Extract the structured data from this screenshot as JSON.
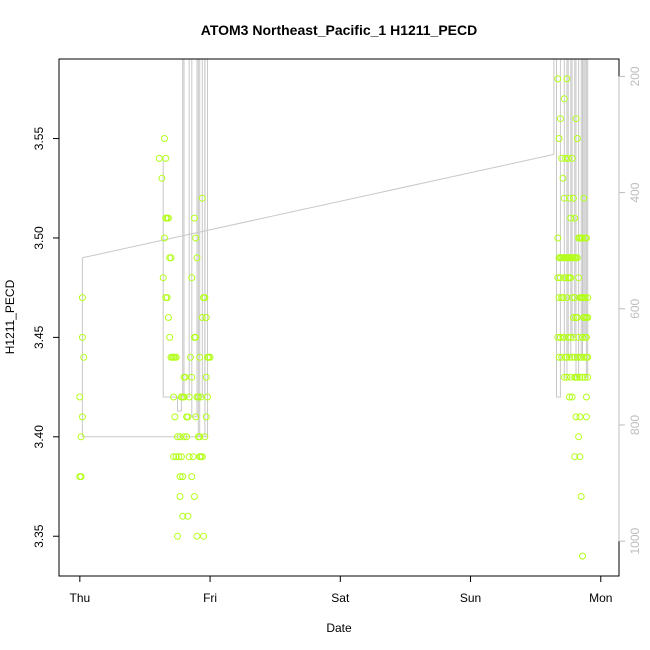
{
  "chart_data": {
    "type": "scatter",
    "title": "ATOM3 Northeast_Pacific_1 H1211_PECD",
    "xlabel": "Date",
    "ylabel": "H1211_PECD",
    "x_ticks": [
      {
        "label": "Thu",
        "value": 0
      },
      {
        "label": "Fri",
        "value": 1
      },
      {
        "label": "Sat",
        "value": 2
      },
      {
        "label": "Sun",
        "value": 3
      },
      {
        "label": "Mon",
        "value": 4
      }
    ],
    "xlim": [
      -0.16,
      4.14
    ],
    "ylim": [
      3.33,
      3.59
    ],
    "y_ticks": [
      3.35,
      3.4,
      3.45,
      3.5,
      3.55
    ],
    "y2_ticks": [
      200,
      400,
      600,
      800,
      1000
    ],
    "y2lim": [
      1060,
      170
    ],
    "point_color": "#b3ff1a",
    "line_color": "#c8c8c8",
    "series": [
      {
        "points": [
          [
            0.0,
            3.38
          ],
          [
            0.01,
            3.38
          ],
          [
            0.0,
            3.42
          ],
          [
            0.01,
            3.4
          ],
          [
            0.02,
            3.41
          ],
          [
            0.02,
            3.45
          ],
          [
            0.02,
            3.47
          ],
          [
            0.03,
            3.44
          ],
          [
            0.61,
            3.54
          ],
          [
            0.63,
            3.53
          ],
          [
            0.64,
            3.48
          ],
          [
            0.65,
            3.55
          ],
          [
            0.66,
            3.54
          ],
          [
            0.65,
            3.5
          ],
          [
            0.66,
            3.51
          ],
          [
            0.67,
            3.51
          ],
          [
            0.68,
            3.51
          ],
          [
            0.69,
            3.49
          ],
          [
            0.7,
            3.49
          ],
          [
            0.66,
            3.47
          ],
          [
            0.67,
            3.47
          ],
          [
            0.68,
            3.46
          ],
          [
            0.69,
            3.45
          ],
          [
            0.7,
            3.44
          ],
          [
            0.71,
            3.44
          ],
          [
            0.72,
            3.44
          ],
          [
            0.73,
            3.44
          ],
          [
            0.74,
            3.44
          ],
          [
            0.72,
            3.42
          ],
          [
            0.73,
            3.41
          ],
          [
            0.72,
            3.39
          ],
          [
            0.74,
            3.39
          ],
          [
            0.76,
            3.39
          ],
          [
            0.75,
            3.4
          ],
          [
            0.77,
            3.4
          ],
          [
            0.78,
            3.42
          ],
          [
            0.79,
            3.42
          ],
          [
            0.8,
            3.43
          ],
          [
            0.81,
            3.43
          ],
          [
            0.8,
            3.4
          ],
          [
            0.82,
            3.4
          ],
          [
            0.78,
            3.39
          ],
          [
            0.77,
            3.38
          ],
          [
            0.79,
            3.38
          ],
          [
            0.77,
            3.37
          ],
          [
            0.79,
            3.36
          ],
          [
            0.75,
            3.35
          ],
          [
            0.83,
            3.36
          ],
          [
            0.8,
            3.42
          ],
          [
            0.82,
            3.41
          ],
          [
            0.83,
            3.41
          ],
          [
            0.84,
            3.42
          ],
          [
            0.85,
            3.44
          ],
          [
            0.86,
            3.43
          ],
          [
            0.86,
            3.48
          ],
          [
            0.88,
            3.51
          ],
          [
            0.89,
            3.5
          ],
          [
            0.9,
            3.49
          ],
          [
            0.88,
            3.45
          ],
          [
            0.89,
            3.45
          ],
          [
            0.9,
            3.42
          ],
          [
            0.91,
            3.42
          ],
          [
            0.92,
            3.44
          ],
          [
            0.93,
            3.42
          ],
          [
            0.94,
            3.46
          ],
          [
            0.95,
            3.47
          ],
          [
            0.96,
            3.47
          ],
          [
            0.94,
            3.52
          ],
          [
            0.97,
            3.46
          ],
          [
            0.98,
            3.44
          ],
          [
            0.99,
            3.44
          ],
          [
            1.0,
            3.44
          ],
          [
            0.97,
            3.43
          ],
          [
            0.98,
            3.42
          ],
          [
            0.97,
            3.41
          ],
          [
            0.96,
            3.4
          ],
          [
            0.92,
            3.39
          ],
          [
            0.93,
            3.39
          ],
          [
            0.94,
            3.39
          ],
          [
            0.91,
            3.4
          ],
          [
            0.9,
            3.35
          ],
          [
            0.92,
            3.4
          ],
          [
            0.84,
            3.39
          ],
          [
            0.87,
            3.39
          ],
          [
            0.88,
            3.37
          ],
          [
            0.95,
            3.35
          ],
          [
            0.89,
            3.41
          ],
          [
            0.86,
            3.38
          ],
          [
            3.67,
            3.58
          ],
          [
            3.68,
            3.55
          ],
          [
            3.69,
            3.56
          ],
          [
            3.7,
            3.54
          ],
          [
            3.71,
            3.53
          ],
          [
            3.72,
            3.52
          ],
          [
            3.73,
            3.54
          ],
          [
            3.72,
            3.57
          ],
          [
            3.74,
            3.58
          ],
          [
            3.75,
            3.54
          ],
          [
            3.76,
            3.52
          ],
          [
            3.77,
            3.51
          ],
          [
            3.78,
            3.54
          ],
          [
            3.79,
            3.52
          ],
          [
            3.8,
            3.51
          ],
          [
            3.81,
            3.56
          ],
          [
            3.82,
            3.55
          ],
          [
            3.83,
            3.5
          ],
          [
            3.84,
            3.5
          ],
          [
            3.85,
            3.5
          ],
          [
            3.86,
            3.5
          ],
          [
            3.87,
            3.52
          ],
          [
            3.88,
            3.5
          ],
          [
            3.89,
            3.5
          ],
          [
            3.67,
            3.5
          ],
          [
            3.68,
            3.49
          ],
          [
            3.69,
            3.49
          ],
          [
            3.7,
            3.49
          ],
          [
            3.71,
            3.49
          ],
          [
            3.72,
            3.49
          ],
          [
            3.73,
            3.49
          ],
          [
            3.74,
            3.49
          ],
          [
            3.75,
            3.49
          ],
          [
            3.76,
            3.49
          ],
          [
            3.77,
            3.49
          ],
          [
            3.78,
            3.49
          ],
          [
            3.79,
            3.49
          ],
          [
            3.8,
            3.49
          ],
          [
            3.81,
            3.49
          ],
          [
            3.82,
            3.49
          ],
          [
            3.67,
            3.48
          ],
          [
            3.68,
            3.47
          ],
          [
            3.69,
            3.48
          ],
          [
            3.7,
            3.47
          ],
          [
            3.71,
            3.47
          ],
          [
            3.72,
            3.48
          ],
          [
            3.73,
            3.48
          ],
          [
            3.74,
            3.47
          ],
          [
            3.75,
            3.48
          ],
          [
            3.76,
            3.48
          ],
          [
            3.77,
            3.48
          ],
          [
            3.78,
            3.47
          ],
          [
            3.79,
            3.46
          ],
          [
            3.8,
            3.47
          ],
          [
            3.81,
            3.46
          ],
          [
            3.82,
            3.46
          ],
          [
            3.83,
            3.48
          ],
          [
            3.84,
            3.47
          ],
          [
            3.85,
            3.47
          ],
          [
            3.86,
            3.47
          ],
          [
            3.87,
            3.47
          ],
          [
            3.88,
            3.47
          ],
          [
            3.89,
            3.46
          ],
          [
            3.9,
            3.47
          ],
          [
            3.67,
            3.45
          ],
          [
            3.68,
            3.44
          ],
          [
            3.69,
            3.45
          ],
          [
            3.7,
            3.44
          ],
          [
            3.71,
            3.45
          ],
          [
            3.72,
            3.45
          ],
          [
            3.73,
            3.44
          ],
          [
            3.74,
            3.44
          ],
          [
            3.75,
            3.45
          ],
          [
            3.76,
            3.44
          ],
          [
            3.77,
            3.45
          ],
          [
            3.78,
            3.44
          ],
          [
            3.79,
            3.45
          ],
          [
            3.8,
            3.44
          ],
          [
            3.81,
            3.43
          ],
          [
            3.82,
            3.44
          ],
          [
            3.83,
            3.45
          ],
          [
            3.84,
            3.44
          ],
          [
            3.85,
            3.44
          ],
          [
            3.86,
            3.45
          ],
          [
            3.87,
            3.44
          ],
          [
            3.88,
            3.45
          ],
          [
            3.89,
            3.44
          ],
          [
            3.9,
            3.44
          ],
          [
            3.72,
            3.43
          ],
          [
            3.74,
            3.43
          ],
          [
            3.76,
            3.42
          ],
          [
            3.77,
            3.43
          ],
          [
            3.78,
            3.42
          ],
          [
            3.8,
            3.43
          ],
          [
            3.82,
            3.43
          ],
          [
            3.84,
            3.43
          ],
          [
            3.86,
            3.43
          ],
          [
            3.88,
            3.43
          ],
          [
            3.89,
            3.42
          ],
          [
            3.9,
            3.43
          ],
          [
            3.81,
            3.41
          ],
          [
            3.84,
            3.41
          ],
          [
            3.89,
            3.41
          ],
          [
            3.8,
            3.39
          ],
          [
            3.84,
            3.39
          ],
          [
            3.85,
            3.37
          ],
          [
            3.86,
            3.34
          ],
          [
            3.83,
            3.4
          ],
          [
            3.87,
            3.46
          ],
          [
            3.88,
            3.46
          ],
          [
            3.89,
            3.45
          ],
          [
            3.9,
            3.46
          ]
        ]
      }
    ],
    "line_segments": [
      [
        [
          0.02,
          3.4
        ],
        [
          0.02,
          3.4
        ],
        [
          0.02,
          3.49
        ],
        [
          0.02,
          3.49
        ]
      ],
      [
        [
          0.02,
          3.4
        ],
        [
          0.98,
          3.4
        ]
      ],
      [
        [
          0.02,
          3.49
        ],
        [
          3.64,
          3.542
        ]
      ],
      [
        [
          0.64,
          3.54
        ],
        [
          0.64,
          3.42
        ],
        [
          0.75,
          3.42
        ],
        [
          0.75,
          3.413
        ],
        [
          0.78,
          3.413
        ],
        [
          0.78,
          3.42
        ],
        [
          0.79,
          3.42
        ],
        [
          0.79,
          3.6
        ]
      ],
      [
        [
          0.8,
          3.6
        ],
        [
          0.8,
          3.42
        ],
        [
          0.84,
          3.42
        ],
        [
          0.84,
          3.6
        ],
        [
          0.86,
          3.6
        ],
        [
          0.86,
          3.41
        ],
        [
          0.9,
          3.41
        ],
        [
          0.9,
          3.6
        ]
      ],
      [
        [
          0.91,
          3.6
        ],
        [
          0.91,
          3.4
        ],
        [
          0.92,
          3.4
        ],
        [
          0.92,
          3.6
        ],
        [
          0.94,
          3.6
        ],
        [
          0.94,
          3.42
        ],
        [
          0.96,
          3.42
        ],
        [
          0.96,
          3.6
        ]
      ],
      [
        [
          0.96,
          3.6
        ],
        [
          0.96,
          3.4
        ],
        [
          0.98,
          3.4
        ],
        [
          0.98,
          3.6
        ]
      ],
      [
        [
          3.64,
          3.542
        ],
        [
          3.64,
          3.6
        ]
      ],
      [
        [
          3.66,
          3.6
        ],
        [
          3.66,
          3.42
        ],
        [
          3.69,
          3.42
        ],
        [
          3.69,
          3.6
        ],
        [
          3.72,
          3.6
        ],
        [
          3.72,
          3.43
        ],
        [
          3.74,
          3.43
        ],
        [
          3.74,
          3.6
        ]
      ],
      [
        [
          3.75,
          3.6
        ],
        [
          3.75,
          3.44
        ],
        [
          3.77,
          3.44
        ],
        [
          3.77,
          3.6
        ],
        [
          3.78,
          3.6
        ],
        [
          3.78,
          3.45
        ],
        [
          3.8,
          3.45
        ],
        [
          3.8,
          3.6
        ]
      ],
      [
        [
          3.81,
          3.6
        ],
        [
          3.81,
          3.43
        ],
        [
          3.83,
          3.43
        ],
        [
          3.83,
          3.6
        ],
        [
          3.85,
          3.6
        ],
        [
          3.85,
          3.44
        ],
        [
          3.86,
          3.44
        ],
        [
          3.86,
          3.6
        ]
      ],
      [
        [
          3.87,
          3.6
        ],
        [
          3.87,
          3.45
        ],
        [
          3.88,
          3.45
        ],
        [
          3.88,
          3.6
        ],
        [
          3.89,
          3.6
        ],
        [
          3.89,
          3.43
        ],
        [
          3.9,
          3.43
        ],
        [
          3.9,
          3.6
        ]
      ]
    ],
    "grid": false,
    "legend": "none"
  }
}
